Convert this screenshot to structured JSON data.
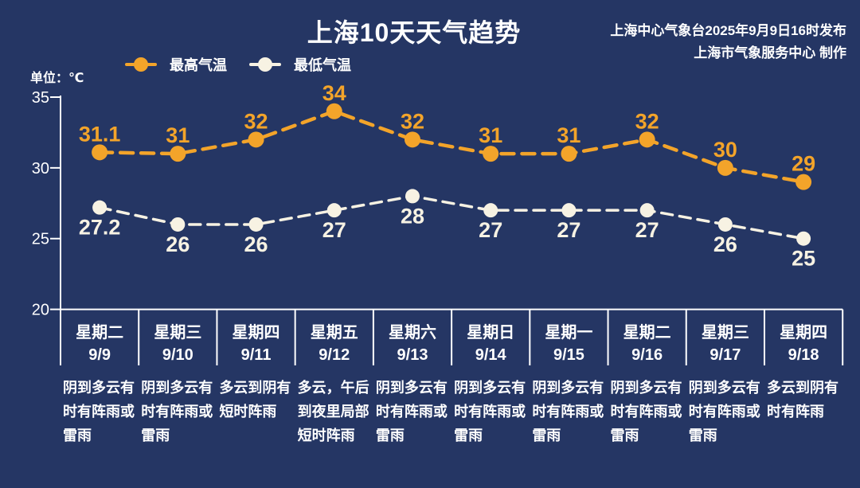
{
  "title": "上海10天天气趋势",
  "publisher": {
    "line1": "上海中心气象台2025年9月9日16时发布",
    "line2": "上海市气象服务中心 制作"
  },
  "unit_label": "单位：℃",
  "legend": {
    "max_label": "最高气温",
    "min_label": "最低气温"
  },
  "colors": {
    "background": "#253664",
    "axis": "#ffffff",
    "text": "#ffffff",
    "max_series": "#f3a42a",
    "min_series": "#f7f2e3"
  },
  "chart_data": {
    "type": "line",
    "title": "上海10天天气趋势",
    "unit": "℃",
    "ylim": [
      20,
      35
    ],
    "yticks": [
      35,
      30,
      25,
      20
    ],
    "grid": false,
    "legend_position": "top-left",
    "categories": [
      {
        "weekday": "星期二",
        "date": "9/9",
        "weather": "阴到多云有时有阵雨或雷雨"
      },
      {
        "weekday": "星期三",
        "date": "9/10",
        "weather": "阴到多云有时有阵雨或雷雨"
      },
      {
        "weekday": "星期四",
        "date": "9/11",
        "weather": "多云到阴有短时阵雨"
      },
      {
        "weekday": "星期五",
        "date": "9/12",
        "weather": "多云，午后到夜里局部短时阵雨"
      },
      {
        "weekday": "星期六",
        "date": "9/13",
        "weather": "阴到多云有时有阵雨或雷雨"
      },
      {
        "weekday": "星期日",
        "date": "9/14",
        "weather": "阴到多云有时有阵雨或雷雨"
      },
      {
        "weekday": "星期一",
        "date": "9/15",
        "weather": "阴到多云有时有阵雨或雷雨"
      },
      {
        "weekday": "星期二",
        "date": "9/16",
        "weather": "阴到多云有时有阵雨或雷雨"
      },
      {
        "weekday": "星期三",
        "date": "9/17",
        "weather": "阴到多云有时有阵雨或雷雨"
      },
      {
        "weekday": "星期四",
        "date": "9/18",
        "weather": "多云到阴有时有阵雨"
      }
    ],
    "series": [
      {
        "name": "最高气温",
        "color": "#f3a42a",
        "values": [
          31.1,
          31,
          32,
          34,
          32,
          31,
          31,
          32,
          30,
          29
        ]
      },
      {
        "name": "最低气温",
        "color": "#f7f2e3",
        "values": [
          27.2,
          26,
          26,
          27,
          28,
          27,
          27,
          27,
          26,
          25
        ]
      }
    ]
  }
}
